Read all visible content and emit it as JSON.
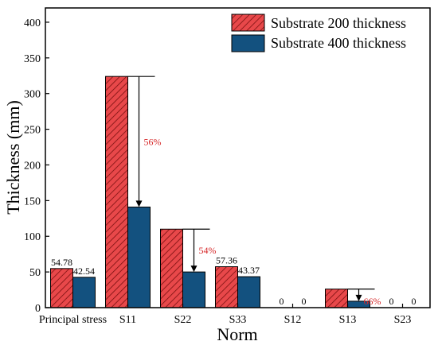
{
  "chart_data": {
    "type": "bar",
    "xlabel": "Norm",
    "ylabel": "Thickness (mm)",
    "ylim": [
      0,
      420
    ],
    "yticks": [
      0,
      50,
      100,
      150,
      200,
      250,
      300,
      350,
      400
    ],
    "categories": [
      "Principal stress",
      "S11",
      "S22",
      "S33",
      "S12",
      "S13",
      "S23"
    ],
    "series": [
      {
        "name": "Substrate 200 thickness",
        "color": "#e8484a",
        "pattern": "diagonal-hatch",
        "values": [
          54.78,
          324,
          110,
          57.36,
          0,
          26,
          0
        ],
        "labels": [
          "54.78",
          "",
          "",
          "57.36",
          "0",
          "",
          "0"
        ]
      },
      {
        "name": "Substrate 400 thickness",
        "color": "#13517f",
        "pattern": "solid",
        "values": [
          42.54,
          141,
          50,
          43.37,
          0,
          9,
          0
        ],
        "labels": [
          "42.54",
          "",
          "",
          "43.37",
          "0",
          "",
          "0"
        ]
      }
    ],
    "annotations": [
      {
        "category": "S11",
        "text": "56%"
      },
      {
        "category": "S22",
        "text": "54%"
      },
      {
        "category": "S13",
        "text": "66%"
      }
    ],
    "legend_position": "top-right"
  }
}
